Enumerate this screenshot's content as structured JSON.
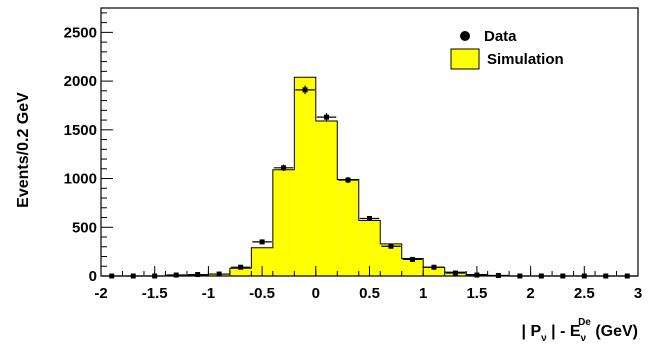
{
  "chart_data": {
    "type": "bar",
    "subtype": "histogram-with-data-points",
    "xlabel": {
      "pre": "| P",
      "pre_sub": "ν",
      "mid": " | - E",
      "mid_sub": "ν",
      "mid_sup": "De",
      "post": " (GeV)"
    },
    "ylabel": "Events/0.2 GeV",
    "xlim": [
      -2,
      3
    ],
    "ylim": [
      0,
      2750
    ],
    "x_ticks": [
      -2,
      -1.5,
      -1,
      -0.5,
      0,
      0.5,
      1,
      1.5,
      2,
      2.5,
      3
    ],
    "x_tick_labels": [
      "-2",
      "-1.5",
      "-1",
      "-0.5",
      "0",
      "0.5",
      "1",
      "1.5",
      "2",
      "2.5",
      "3"
    ],
    "y_ticks": [
      0,
      500,
      1000,
      1500,
      2000,
      2500
    ],
    "y_tick_labels": [
      "0",
      "500",
      "1000",
      "1500",
      "2000",
      "2500"
    ],
    "bin_width": 0.2,
    "bin_edges_start": -2.0,
    "legend": {
      "position": "top-right",
      "entries": [
        {
          "label": "Data",
          "marker": "filled-circle",
          "color": "#000000"
        },
        {
          "label": "Simulation",
          "marker": "filled-box",
          "color": "#ffff00"
        }
      ]
    },
    "series": [
      {
        "name": "Simulation",
        "kind": "histogram",
        "color": "#ffff00",
        "values": [
          0,
          0,
          0,
          5,
          10,
          20,
          80,
          290,
          1090,
          2040,
          1590,
          990,
          570,
          330,
          180,
          90,
          40,
          15,
          5,
          0,
          0,
          0,
          0,
          0,
          0
        ]
      },
      {
        "name": "Data",
        "kind": "points",
        "color": "#000000",
        "values": [
          0,
          0,
          0,
          10,
          15,
          20,
          90,
          350,
          1110,
          1910,
          1630,
          985,
          590,
          305,
          170,
          90,
          30,
          10,
          5,
          0,
          0,
          0,
          0,
          0,
          0
        ]
      }
    ]
  }
}
